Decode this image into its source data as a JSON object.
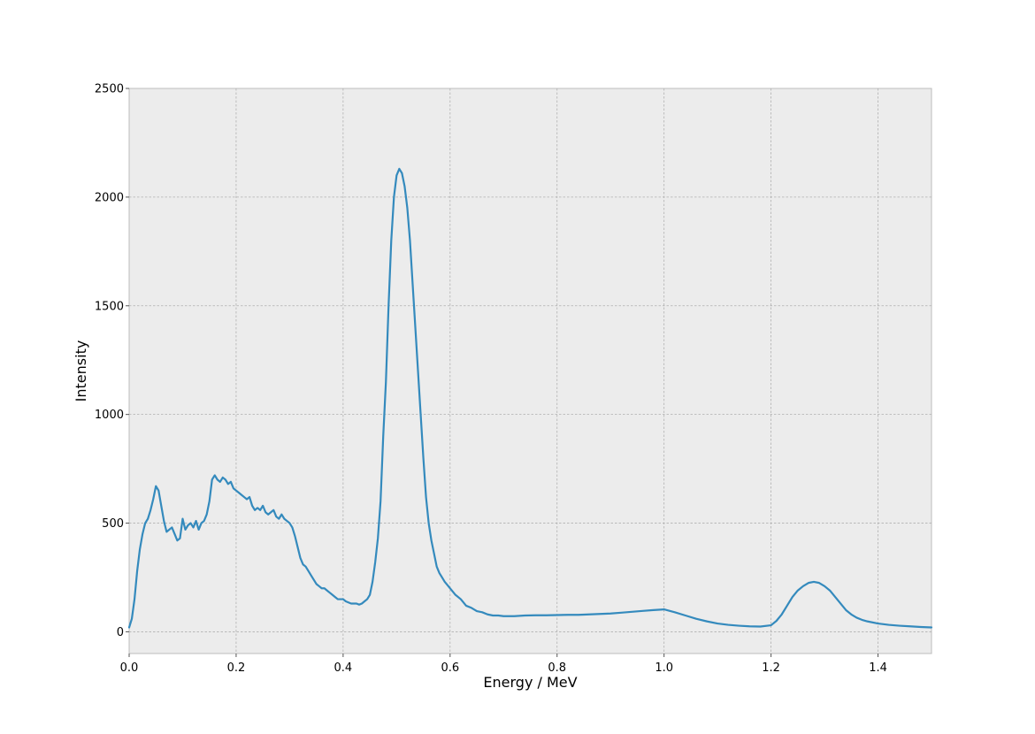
{
  "chart_data": {
    "type": "line",
    "title": "",
    "xlabel": "Energy / MeV",
    "ylabel": "Intensity",
    "xlim": [
      0,
      1.5
    ],
    "ylim": [
      -100,
      2500
    ],
    "xticks": [
      0.0,
      0.2,
      0.4,
      0.6,
      0.8,
      1.0,
      1.2,
      1.4
    ],
    "xtick_labels": [
      "0.0",
      "0.2",
      "0.4",
      "0.6",
      "0.8",
      "1.0",
      "1.2",
      "1.4"
    ],
    "yticks": [
      0,
      500,
      1000,
      1500,
      2000,
      2500
    ],
    "ytick_labels": [
      "0",
      "500",
      "1000",
      "1500",
      "2000",
      "2500"
    ],
    "grid": true,
    "style": {
      "background": "#ececec",
      "line_color": "#348abd",
      "grid_color": "#b0b0b0"
    },
    "series": [
      {
        "x": [
          0.0,
          0.005,
          0.01,
          0.015,
          0.02,
          0.025,
          0.03,
          0.035,
          0.04,
          0.045,
          0.05,
          0.055,
          0.06,
          0.065,
          0.07,
          0.075,
          0.08,
          0.085,
          0.09,
          0.095,
          0.1,
          0.105,
          0.11,
          0.115,
          0.12,
          0.125,
          0.13,
          0.135,
          0.14,
          0.145,
          0.15,
          0.155,
          0.16,
          0.165,
          0.17,
          0.175,
          0.18,
          0.185,
          0.19,
          0.195,
          0.2,
          0.205,
          0.21,
          0.215,
          0.22,
          0.225,
          0.23,
          0.235,
          0.24,
          0.245,
          0.25,
          0.255,
          0.26,
          0.265,
          0.27,
          0.275,
          0.28,
          0.285,
          0.29,
          0.295,
          0.3,
          0.305,
          0.31,
          0.315,
          0.32,
          0.325,
          0.33,
          0.335,
          0.34,
          0.345,
          0.35,
          0.355,
          0.36,
          0.365,
          0.37,
          0.375,
          0.38,
          0.385,
          0.39,
          0.395,
          0.4,
          0.405,
          0.41,
          0.415,
          0.42,
          0.425,
          0.43,
          0.435,
          0.44,
          0.445,
          0.45,
          0.455,
          0.46,
          0.465,
          0.47,
          0.475,
          0.48,
          0.485,
          0.49,
          0.495,
          0.5,
          0.505,
          0.51,
          0.515,
          0.52,
          0.525,
          0.53,
          0.535,
          0.54,
          0.545,
          0.55,
          0.555,
          0.56,
          0.565,
          0.57,
          0.575,
          0.58,
          0.585,
          0.59,
          0.595,
          0.6,
          0.61,
          0.62,
          0.63,
          0.64,
          0.65,
          0.66,
          0.67,
          0.68,
          0.69,
          0.7,
          0.72,
          0.74,
          0.76,
          0.78,
          0.8,
          0.82,
          0.84,
          0.86,
          0.88,
          0.9,
          0.92,
          0.94,
          0.96,
          0.98,
          1.0,
          1.02,
          1.04,
          1.06,
          1.08,
          1.1,
          1.12,
          1.14,
          1.16,
          1.18,
          1.2,
          1.21,
          1.22,
          1.23,
          1.24,
          1.25,
          1.26,
          1.27,
          1.28,
          1.29,
          1.3,
          1.31,
          1.32,
          1.33,
          1.34,
          1.35,
          1.36,
          1.37,
          1.38,
          1.4,
          1.42,
          1.44,
          1.46,
          1.48,
          1.5
        ],
        "y": [
          20,
          60,
          150,
          280,
          380,
          450,
          500,
          520,
          560,
          610,
          670,
          650,
          580,
          510,
          460,
          470,
          480,
          450,
          420,
          430,
          520,
          470,
          490,
          500,
          480,
          510,
          470,
          500,
          510,
          540,
          600,
          700,
          720,
          700,
          690,
          710,
          700,
          680,
          690,
          660,
          650,
          640,
          630,
          620,
          610,
          620,
          580,
          560,
          570,
          560,
          580,
          550,
          540,
          550,
          560,
          530,
          520,
          540,
          520,
          510,
          500,
          480,
          440,
          390,
          340,
          310,
          300,
          280,
          260,
          240,
          220,
          210,
          200,
          200,
          190,
          180,
          170,
          160,
          150,
          150,
          150,
          140,
          135,
          130,
          130,
          130,
          125,
          130,
          140,
          150,
          170,
          230,
          320,
          430,
          600,
          900,
          1150,
          1500,
          1800,
          2000,
          2100,
          2130,
          2110,
          2050,
          1950,
          1800,
          1600,
          1400,
          1200,
          1000,
          800,
          620,
          500,
          420,
          360,
          300,
          270,
          250,
          230,
          215,
          200,
          170,
          150,
          120,
          110,
          95,
          90,
          80,
          75,
          75,
          72,
          72,
          75,
          76,
          76,
          77,
          78,
          78,
          80,
          82,
          84,
          88,
          92,
          96,
          100,
          103,
          90,
          75,
          60,
          48,
          38,
          32,
          28,
          25,
          24,
          30,
          50,
          80,
          120,
          160,
          190,
          210,
          225,
          230,
          225,
          210,
          190,
          160,
          130,
          100,
          80,
          65,
          55,
          48,
          38,
          32,
          28,
          25,
          22,
          20
        ]
      }
    ]
  }
}
